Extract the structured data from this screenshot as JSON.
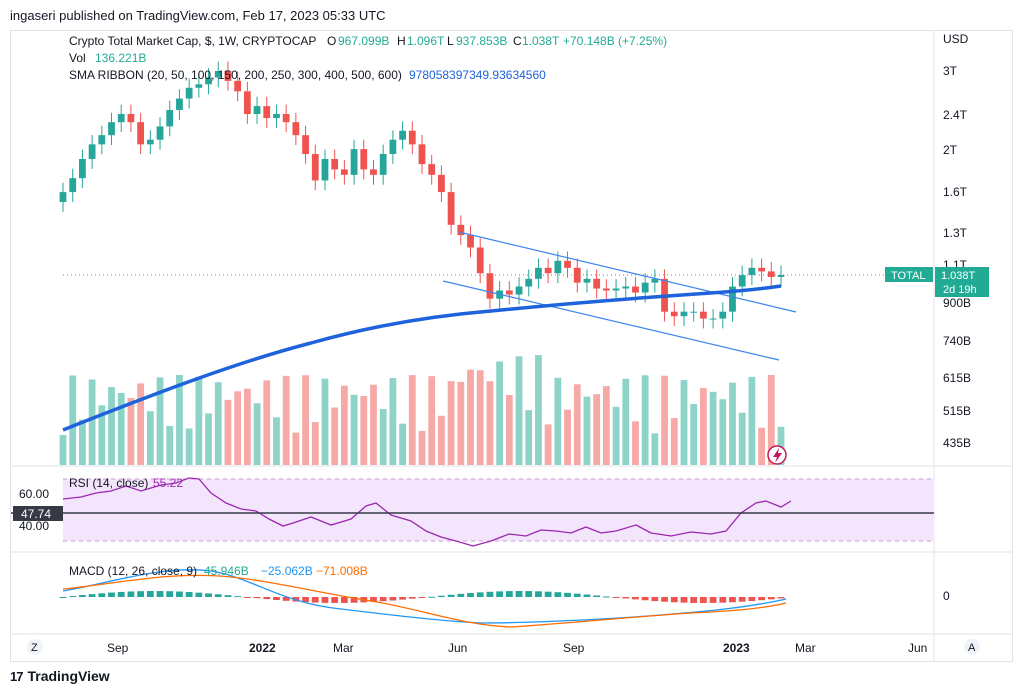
{
  "header": {
    "published": "ingaseri published on TradingView.com, Feb 17, 2023 05:33 UTC"
  },
  "legend": {
    "symbol": "Crypto Total Market Cap, $, 1W, CRYPTOCAP",
    "o_label": "O",
    "o_value": "967.099B",
    "h_label": "H",
    "h_value": "1.096T",
    "l_label": "L",
    "l_value": "937.853B",
    "c_label": "C",
    "c_value": "1.038T",
    "change": "+70.148B (+7.25%)",
    "vol_label": "Vol",
    "vol_value": "136.221B",
    "sma_label": "SMA RIBBON (20, 50, 100, 150, 200, 250, 300, 400, 500, 600)",
    "sma_value": "978058397349.93634560"
  },
  "price_axis": {
    "currency": "USD",
    "ticks": [
      "3T",
      "2.4T",
      "2T",
      "1.6T",
      "1.3T",
      "1.1T",
      "900B",
      "740B",
      "615B",
      "515B",
      "435B"
    ]
  },
  "price_tag": {
    "name": "TOTAL",
    "value": "1.038T",
    "countdown": "2d 19h"
  },
  "rsi": {
    "label": "RSI (14, close)",
    "value": "55.22",
    "ticks": [
      "60.00",
      "40.00"
    ],
    "tag": "47.74"
  },
  "macd": {
    "label": "MACD (12, 26, close, 9)",
    "hist": "45.946B",
    "macd": "−25.062B",
    "signal": "−71.008B",
    "zero_tick": "0"
  },
  "time_axis": {
    "labels": [
      "Sep",
      "2022",
      "Mar",
      "Jun",
      "Sep",
      "2023",
      "Mar",
      "Jun"
    ]
  },
  "buttons": {
    "zoom": "Z",
    "auto": "A"
  },
  "footer": {
    "brand": "TradingView"
  },
  "colors": {
    "up": "#26a69a",
    "down": "#ef5350",
    "vol_up": "#8ed3c8",
    "vol_down": "#f7a9a7",
    "sma": "#1e62dc",
    "channel": "#3d85ee",
    "rsi": "#9c27b0",
    "macd": "#2196f3",
    "signal": "#ff6d00",
    "tag": "#22ab94"
  },
  "chart_data": {
    "type": "candlestick",
    "timeframe": "1W",
    "y_scale": "log",
    "ohlc_close_path_T": [
      1.6,
      1.72,
      1.9,
      2.05,
      2.15,
      2.3,
      2.4,
      2.3,
      2.05,
      2.1,
      2.25,
      2.45,
      2.6,
      2.75,
      2.8,
      2.9,
      3.0,
      2.85,
      2.7,
      2.4,
      2.5,
      2.35,
      2.4,
      2.3,
      2.15,
      1.95,
      1.7,
      1.9,
      1.8,
      1.75,
      2.0,
      1.8,
      1.75,
      1.95,
      2.1,
      2.2,
      2.05,
      1.85,
      1.75,
      1.6,
      1.35,
      1.28,
      1.2,
      1.05,
      0.92,
      0.96,
      0.94,
      0.98,
      1.02,
      1.08,
      1.05,
      1.12,
      1.08,
      1.0,
      1.02,
      0.97,
      0.96,
      0.97,
      0.98,
      0.95,
      1.0,
      1.02,
      0.86,
      0.84,
      0.86,
      0.86,
      0.83,
      0.83,
      0.86,
      0.98,
      1.04,
      1.08,
      1.06,
      1.03,
      1.04
    ],
    "last": {
      "open": 0.967099,
      "high": 1.096,
      "low": 0.937853,
      "close": 1.038,
      "unit": "T"
    },
    "volume_last_B": 136.221,
    "sma_ribbon_last": 978058397349.9364,
    "rsi_last": 55.22,
    "macd_last": {
      "histogram_B": 45.946,
      "macd_B": -25.062,
      "signal_B": -71.008
    }
  }
}
